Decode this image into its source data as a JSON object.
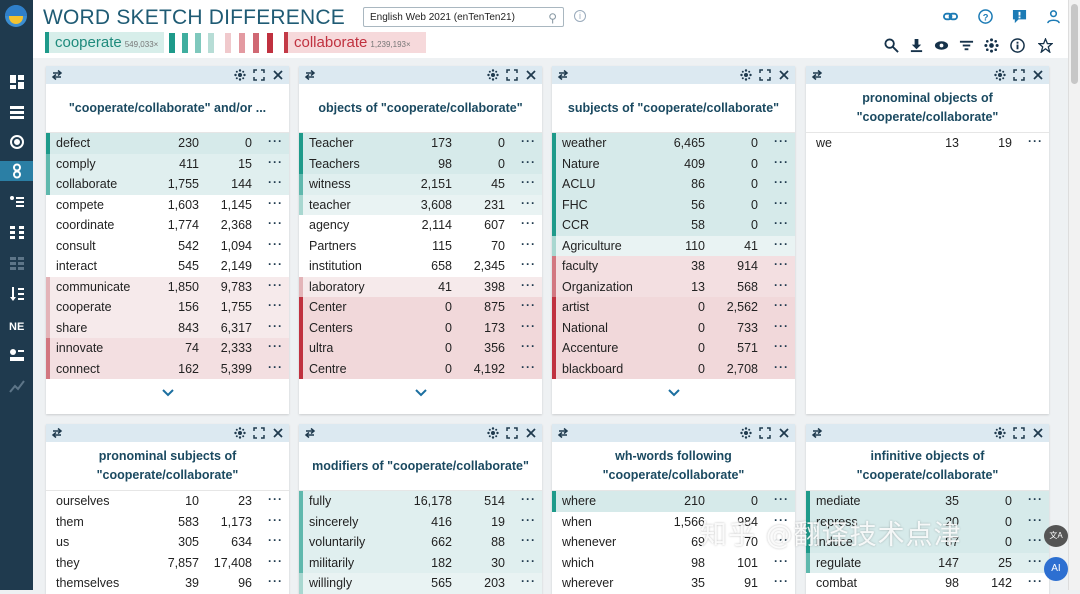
{
  "app": {
    "title": "WORD SKETCH DIFFERENCE",
    "corpus": "English Web 2021 (enTenTen21)",
    "lemma1": {
      "word": "cooperate",
      "freq": "549,033×",
      "color": "#1e9a8a"
    },
    "lemma2": {
      "word": "collaborate",
      "freq": "1,239,193×",
      "color": "#c0313f"
    }
  },
  "sidebar": {
    "items": [
      {
        "icon": "dashboard-icon"
      },
      {
        "icon": "list-icon"
      },
      {
        "icon": "target-icon"
      },
      {
        "icon": "word-sketch-difference-icon",
        "active": true
      },
      {
        "icon": "thesaurus-icon"
      },
      {
        "icon": "parallel-icon"
      },
      {
        "icon": "grid-icon",
        "dim": true
      },
      {
        "icon": "wordlist-icon"
      },
      {
        "icon": "ner-icon"
      },
      {
        "icon": "keywords-icon"
      },
      {
        "icon": "trends-icon",
        "dim": true
      }
    ]
  },
  "panels": [
    {
      "title": "\"cooperate/collaborate\" and/or ...",
      "rows": [
        {
          "w": "defect",
          "a": "230",
          "b": "0",
          "c": "t3"
        },
        {
          "w": "comply",
          "a": "411",
          "b": "15",
          "c": "t2"
        },
        {
          "w": "collaborate",
          "a": "1,755",
          "b": "144",
          "c": "t2"
        },
        {
          "w": "compete",
          "a": "1,603",
          "b": "1,145",
          "c": "n"
        },
        {
          "w": "coordinate",
          "a": "1,774",
          "b": "2,368",
          "c": "n"
        },
        {
          "w": "consult",
          "a": "542",
          "b": "1,094",
          "c": "n"
        },
        {
          "w": "interact",
          "a": "545",
          "b": "2,149",
          "c": "n"
        },
        {
          "w": "communicate",
          "a": "1,850",
          "b": "9,783",
          "c": "r1"
        },
        {
          "w": "cooperate",
          "a": "156",
          "b": "1,755",
          "c": "r1"
        },
        {
          "w": "share",
          "a": "843",
          "b": "6,317",
          "c": "r1"
        },
        {
          "w": "innovate",
          "a": "74",
          "b": "2,333",
          "c": "r2"
        },
        {
          "w": "connect",
          "a": "162",
          "b": "5,399",
          "c": "r2"
        }
      ],
      "more": true
    },
    {
      "title": "objects of \"cooperate/collaborate\"",
      "rows": [
        {
          "w": "Teacher",
          "a": "173",
          "b": "0",
          "c": "t3"
        },
        {
          "w": "Teachers",
          "a": "98",
          "b": "0",
          "c": "t3"
        },
        {
          "w": "witness",
          "a": "2,151",
          "b": "45",
          "c": "t2"
        },
        {
          "w": "teacher",
          "a": "3,608",
          "b": "231",
          "c": "t1"
        },
        {
          "w": "agency",
          "a": "2,114",
          "b": "607",
          "c": "n"
        },
        {
          "w": "Partners",
          "a": "115",
          "b": "70",
          "c": "n"
        },
        {
          "w": "institution",
          "a": "658",
          "b": "2,345",
          "c": "n"
        },
        {
          "w": "laboratory",
          "a": "41",
          "b": "398",
          "c": "r1"
        },
        {
          "w": "Center",
          "a": "0",
          "b": "875",
          "c": "r3"
        },
        {
          "w": "Centers",
          "a": "0",
          "b": "173",
          "c": "r3"
        },
        {
          "w": "ultra",
          "a": "0",
          "b": "356",
          "c": "r3"
        },
        {
          "w": "Centre",
          "a": "0",
          "b": "4,192",
          "c": "r3"
        }
      ],
      "more": true
    },
    {
      "title": "subjects of \"cooperate/collaborate\"",
      "rows": [
        {
          "w": "weather",
          "a": "6,465",
          "b": "0",
          "c": "t3"
        },
        {
          "w": "Nature",
          "a": "409",
          "b": "0",
          "c": "t3"
        },
        {
          "w": "ACLU",
          "a": "86",
          "b": "0",
          "c": "t3"
        },
        {
          "w": "FHC",
          "a": "56",
          "b": "0",
          "c": "t3"
        },
        {
          "w": "CCR",
          "a": "58",
          "b": "0",
          "c": "t3"
        },
        {
          "w": "Agriculture",
          "a": "110",
          "b": "41",
          "c": "t1"
        },
        {
          "w": "faculty",
          "a": "38",
          "b": "914",
          "c": "r2"
        },
        {
          "w": "Organization",
          "a": "13",
          "b": "568",
          "c": "r2"
        },
        {
          "w": "artist",
          "a": "0",
          "b": "2,562",
          "c": "r3"
        },
        {
          "w": "National",
          "a": "0",
          "b": "733",
          "c": "r3"
        },
        {
          "w": "Accenture",
          "a": "0",
          "b": "571",
          "c": "r3"
        },
        {
          "w": "blackboard",
          "a": "0",
          "b": "2,708",
          "c": "r3"
        }
      ],
      "more": true
    },
    {
      "title": "pronominal objects of \"cooperate/collaborate\"",
      "rows": [
        {
          "w": "we",
          "a": "13",
          "b": "19",
          "c": "n"
        }
      ],
      "more": false
    },
    {
      "title": "pronominal subjects of \"cooperate/collaborate\"",
      "rows": [
        {
          "w": "ourselves",
          "a": "10",
          "b": "23",
          "c": "n"
        },
        {
          "w": "them",
          "a": "583",
          "b": "1,173",
          "c": "n"
        },
        {
          "w": "us",
          "a": "305",
          "b": "634",
          "c": "n"
        },
        {
          "w": "they",
          "a": "7,857",
          "b": "17,408",
          "c": "n"
        },
        {
          "w": "themselves",
          "a": "39",
          "b": "96",
          "c": "n"
        }
      ],
      "more": false
    },
    {
      "title": "modifiers of \"cooperate/collaborate\"",
      "rows": [
        {
          "w": "fully",
          "a": "16,178",
          "b": "514",
          "c": "t2"
        },
        {
          "w": "sincerely",
          "a": "416",
          "b": "19",
          "c": "t2"
        },
        {
          "w": "voluntarily",
          "a": "662",
          "b": "88",
          "c": "t2"
        },
        {
          "w": "militarily",
          "a": "182",
          "b": "30",
          "c": "t2"
        },
        {
          "w": "willingly",
          "a": "565",
          "b": "203",
          "c": "t1"
        }
      ],
      "more": false
    },
    {
      "title": "wh-words following \"cooperate/collaborate\"",
      "rows": [
        {
          "w": "where",
          "a": "210",
          "b": "0",
          "c": "t3"
        },
        {
          "w": "when",
          "a": "1,566",
          "b": "984",
          "c": "n"
        },
        {
          "w": "whenever",
          "a": "69",
          "b": "70",
          "c": "n"
        },
        {
          "w": "which",
          "a": "98",
          "b": "101",
          "c": "n"
        },
        {
          "w": "wherever",
          "a": "35",
          "b": "91",
          "c": "n"
        }
      ],
      "more": false
    },
    {
      "title": "infinitive objects of \"cooperate/collaborate\"",
      "rows": [
        {
          "w": "mediate",
          "a": "35",
          "b": "0",
          "c": "t3"
        },
        {
          "w": "repress",
          "a": "20",
          "b": "0",
          "c": "t3"
        },
        {
          "w": "induce",
          "a": "87",
          "b": "0",
          "c": "t3"
        },
        {
          "w": "regulate",
          "a": "147",
          "b": "25",
          "c": "t2"
        },
        {
          "w": "combat",
          "a": "98",
          "b": "142",
          "c": "n"
        }
      ],
      "more": false
    }
  ],
  "watermark": "知乎 @翻译技术点津",
  "fab_translate": "文A",
  "fab_chat": "AI"
}
